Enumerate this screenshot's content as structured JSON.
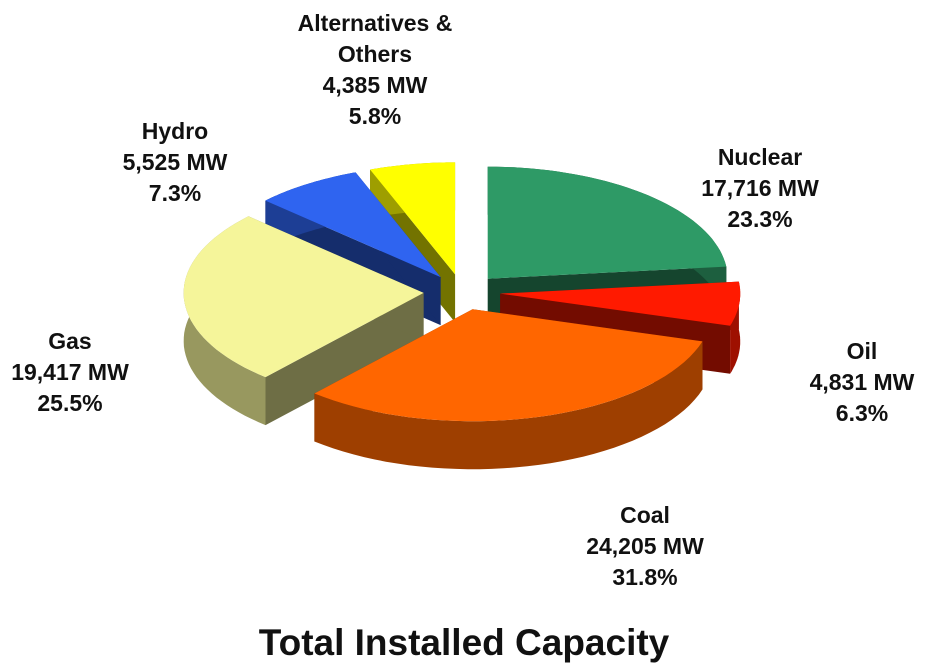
{
  "chart_data": {
    "type": "pie3d",
    "title": "Total Installed Capacity",
    "categories": [
      "Nuclear",
      "Oil",
      "Coal",
      "Gas",
      "Hydro",
      "Alternatives & Others"
    ],
    "values": [
      17716,
      4831,
      24205,
      19417,
      5525,
      4385
    ],
    "value_labels": [
      "17,716 MW",
      "4,831 MW",
      "24,205 MW",
      "19,417 MW",
      "5,525 MW",
      "4,385 MW"
    ],
    "percent_labels": [
      "23.3%",
      "6.3%",
      "31.8%",
      "25.5%",
      "7.3%",
      "5.8%"
    ],
    "colors": [
      "#2e9a66",
      "#ff1a00",
      "#ff6600",
      "#f5f59a",
      "#2f64f0",
      "#ffff00"
    ]
  }
}
